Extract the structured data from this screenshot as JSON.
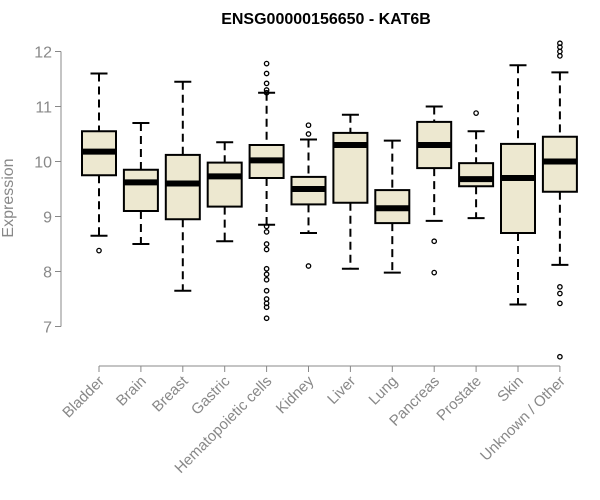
{
  "chart_data": {
    "type": "boxplot",
    "title": "ENSG00000156650 - KAT6B",
    "ylabel": "Expression",
    "xlabel": "",
    "ylim": [
      6.3,
      12.25
    ],
    "yticks": [
      7,
      8,
      9,
      10,
      11,
      12
    ],
    "box_fill": "#ede8d0",
    "categories": [
      "Bladder",
      "Brain",
      "Breast",
      "Gastric",
      "Hematopoietic cells",
      "Kidney",
      "Liver",
      "Lung",
      "Pancreas",
      "Prostate",
      "Skin",
      "Unknown / Other"
    ],
    "boxes": [
      {
        "low": 8.65,
        "q1": 9.75,
        "median": 10.18,
        "q3": 10.55,
        "high": 11.6,
        "outliers": [
          8.38
        ]
      },
      {
        "low": 8.5,
        "q1": 9.1,
        "median": 9.62,
        "q3": 9.85,
        "high": 10.7,
        "outliers": []
      },
      {
        "low": 7.65,
        "q1": 8.95,
        "median": 9.6,
        "q3": 10.12,
        "high": 11.45,
        "outliers": []
      },
      {
        "low": 8.55,
        "q1": 9.18,
        "median": 9.73,
        "q3": 9.98,
        "high": 10.35,
        "outliers": []
      },
      {
        "low": 8.85,
        "q1": 9.7,
        "median": 10.02,
        "q3": 10.3,
        "high": 11.25,
        "outliers": [
          11.78,
          11.6,
          11.42,
          11.3,
          11.25,
          8.82,
          8.72,
          8.5,
          8.4,
          8.05,
          7.95,
          7.85,
          7.65,
          7.5,
          7.42,
          7.35,
          7.15
        ]
      },
      {
        "low": 8.7,
        "q1": 9.22,
        "median": 9.5,
        "q3": 9.72,
        "high": 10.4,
        "outliers": [
          10.66,
          10.5,
          8.1
        ]
      },
      {
        "low": 8.05,
        "q1": 9.25,
        "median": 10.3,
        "q3": 10.52,
        "high": 10.85,
        "outliers": []
      },
      {
        "low": 7.98,
        "q1": 8.88,
        "median": 9.15,
        "q3": 9.48,
        "high": 10.38,
        "outliers": []
      },
      {
        "low": 8.92,
        "q1": 9.88,
        "median": 10.3,
        "q3": 10.72,
        "high": 11.0,
        "outliers": [
          8.55,
          7.98
        ]
      },
      {
        "low": 8.97,
        "q1": 9.55,
        "median": 9.68,
        "q3": 9.97,
        "high": 10.55,
        "outliers": [
          10.88
        ]
      },
      {
        "low": 7.4,
        "q1": 8.7,
        "median": 9.7,
        "q3": 10.32,
        "high": 11.75,
        "outliers": []
      },
      {
        "low": 8.12,
        "q1": 9.45,
        "median": 10.0,
        "q3": 10.45,
        "high": 11.62,
        "outliers": [
          12.15,
          12.08,
          12.0,
          11.92,
          7.72,
          7.6,
          7.42,
          6.45
        ]
      }
    ]
  }
}
